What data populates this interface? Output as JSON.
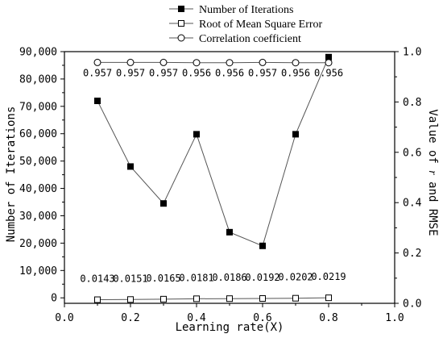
{
  "chart_data": {
    "type": "line",
    "title": "",
    "xlabel": "Learning rate(X)",
    "ylabel_left": "Number of Iterations",
    "ylabel_right_parts": [
      "Value of ",
      "r",
      " and RMSE"
    ],
    "xlim": [
      0.0,
      1.0
    ],
    "ylim_left": [
      -2000,
      90000
    ],
    "ylim_right": [
      0.0,
      1.0
    ],
    "x_ticks": [
      "0.0",
      "0.2",
      "0.4",
      "0.6",
      "0.8",
      "1.0"
    ],
    "y_left_ticks": [
      "0",
      "10,000",
      "20,000",
      "30,000",
      "40,000",
      "50,000",
      "60,000",
      "70,000",
      "80,000",
      "90,000"
    ],
    "y_right_ticks": [
      "0.0",
      "0.2",
      "0.4",
      "0.6",
      "0.8",
      "1.0"
    ],
    "grid": false,
    "legend_position": "top",
    "x": [
      0.1,
      0.2,
      0.3,
      0.4,
      0.5,
      0.6,
      0.7,
      0.8
    ],
    "series": [
      {
        "name": "Number of Iterations",
        "axis": "left",
        "marker": "filled-square",
        "values": [
          72000,
          48000,
          34500,
          59800,
          24000,
          19000,
          59800,
          88000
        ]
      },
      {
        "name": "Root of Mean Square Error",
        "axis": "right",
        "marker": "open-square",
        "values": [
          0.0143,
          0.0151,
          0.0165,
          0.0181,
          0.0186,
          0.0192,
          0.0202,
          0.0219
        ],
        "labels": [
          "0.0143",
          "0.0151",
          "0.0165",
          "0.0181",
          "0.0186",
          "0.0192",
          "0.0202",
          "0.0219"
        ]
      },
      {
        "name": "Correlation coefficient",
        "axis": "right",
        "marker": "open-circle",
        "values": [
          0.957,
          0.957,
          0.957,
          0.956,
          0.956,
          0.957,
          0.956,
          0.956
        ],
        "labels": [
          "0.957",
          "0.957",
          "0.957",
          "0.956",
          "0.956",
          "0.957",
          "0.956",
          "0.956"
        ]
      }
    ]
  }
}
